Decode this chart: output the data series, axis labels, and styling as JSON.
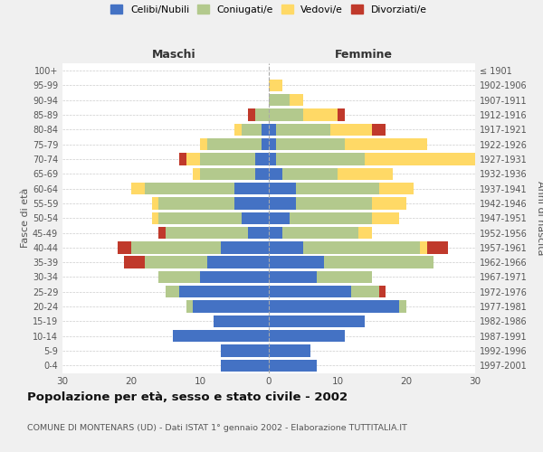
{
  "age_groups": [
    "100+",
    "95-99",
    "90-94",
    "85-89",
    "80-84",
    "75-79",
    "70-74",
    "65-69",
    "60-64",
    "55-59",
    "50-54",
    "45-49",
    "40-44",
    "35-39",
    "30-34",
    "25-29",
    "20-24",
    "15-19",
    "10-14",
    "5-9",
    "0-4"
  ],
  "birth_years": [
    "≤ 1901",
    "1902-1906",
    "1907-1911",
    "1912-1916",
    "1917-1921",
    "1922-1926",
    "1927-1931",
    "1932-1936",
    "1937-1941",
    "1942-1946",
    "1947-1951",
    "1952-1956",
    "1957-1961",
    "1962-1966",
    "1967-1971",
    "1972-1976",
    "1977-1981",
    "1982-1986",
    "1987-1991",
    "1992-1996",
    "1997-2001"
  ],
  "male": {
    "celibi": [
      0,
      0,
      0,
      0,
      1,
      1,
      2,
      2,
      5,
      5,
      4,
      3,
      7,
      9,
      10,
      13,
      11,
      8,
      14,
      7,
      7
    ],
    "coniugati": [
      0,
      0,
      0,
      2,
      3,
      8,
      8,
      8,
      13,
      11,
      12,
      12,
      13,
      9,
      6,
      2,
      1,
      0,
      0,
      0,
      0
    ],
    "vedovi": [
      0,
      0,
      0,
      0,
      1,
      1,
      2,
      1,
      2,
      1,
      1,
      0,
      0,
      0,
      0,
      0,
      0,
      0,
      0,
      0,
      0
    ],
    "divorziati": [
      0,
      0,
      0,
      1,
      0,
      0,
      1,
      0,
      0,
      0,
      0,
      1,
      2,
      3,
      0,
      0,
      0,
      0,
      0,
      0,
      0
    ]
  },
  "female": {
    "nubili": [
      0,
      0,
      0,
      0,
      1,
      1,
      1,
      2,
      4,
      4,
      3,
      2,
      5,
      8,
      7,
      12,
      19,
      14,
      11,
      6,
      7
    ],
    "coniugate": [
      0,
      0,
      3,
      5,
      8,
      10,
      13,
      8,
      12,
      11,
      12,
      11,
      17,
      16,
      8,
      4,
      1,
      0,
      0,
      0,
      0
    ],
    "vedove": [
      0,
      2,
      2,
      5,
      6,
      12,
      20,
      8,
      5,
      5,
      4,
      2,
      1,
      0,
      0,
      0,
      0,
      0,
      0,
      0,
      0
    ],
    "divorziate": [
      0,
      0,
      0,
      1,
      2,
      0,
      0,
      0,
      0,
      0,
      0,
      0,
      3,
      0,
      0,
      1,
      0,
      0,
      0,
      0,
      0
    ]
  },
  "colors": {
    "celibi": "#4472c4",
    "coniugati": "#b3c98d",
    "vedovi": "#ffd966",
    "divorziati": "#c0392b"
  },
  "title": "Popolazione per età, sesso e stato civile - 2002",
  "subtitle": "COMUNE DI MONTENARS (UD) - Dati ISTAT 1° gennaio 2002 - Elaborazione TUTTITALIA.IT",
  "ylabel_left": "Fasce di età",
  "ylabel_right": "Anni di nascita",
  "xlabel_left": "Maschi",
  "xlabel_right": "Femmine",
  "xlim": 30,
  "bg_color": "#f0f0f0",
  "plot_bg": "#ffffff",
  "grid_color": "#cccccc"
}
